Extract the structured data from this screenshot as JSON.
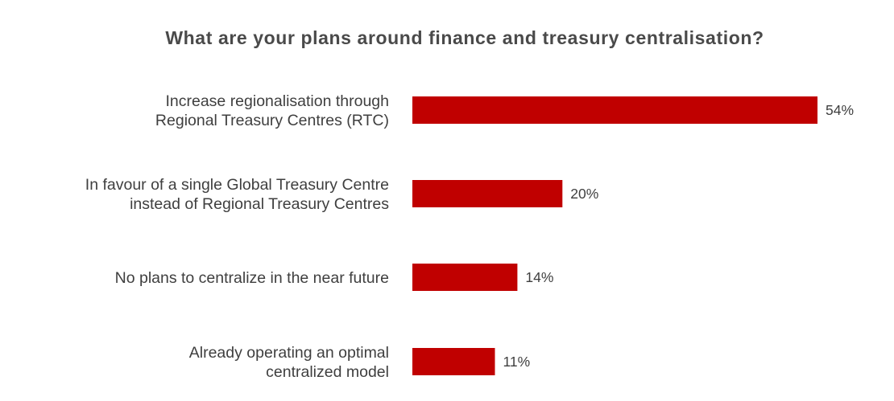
{
  "chart_data": {
    "type": "bar",
    "orientation": "horizontal",
    "title": "What are your plans around finance and treasury centralisation?",
    "categories": [
      [
        "Increase regionalisation through",
        "Regional Treasury Centres (RTC)"
      ],
      [
        "In favour of a single Global Treasury Centre",
        "instead of Regional Treasury Centres"
      ],
      [
        "No plans to centralize in the near future"
      ],
      [
        "Already operating an optimal",
        "centralized model"
      ]
    ],
    "values": [
      54,
      20,
      14,
      11
    ],
    "value_labels": [
      "54%",
      "20%",
      "14%",
      "11%"
    ],
    "unit": "%",
    "xlim": [
      0,
      54
    ],
    "grid": false,
    "legend": "none",
    "colors": {
      "bar": "#c00000",
      "text": "#3f3f3f",
      "title": "#4a4a4a"
    }
  }
}
